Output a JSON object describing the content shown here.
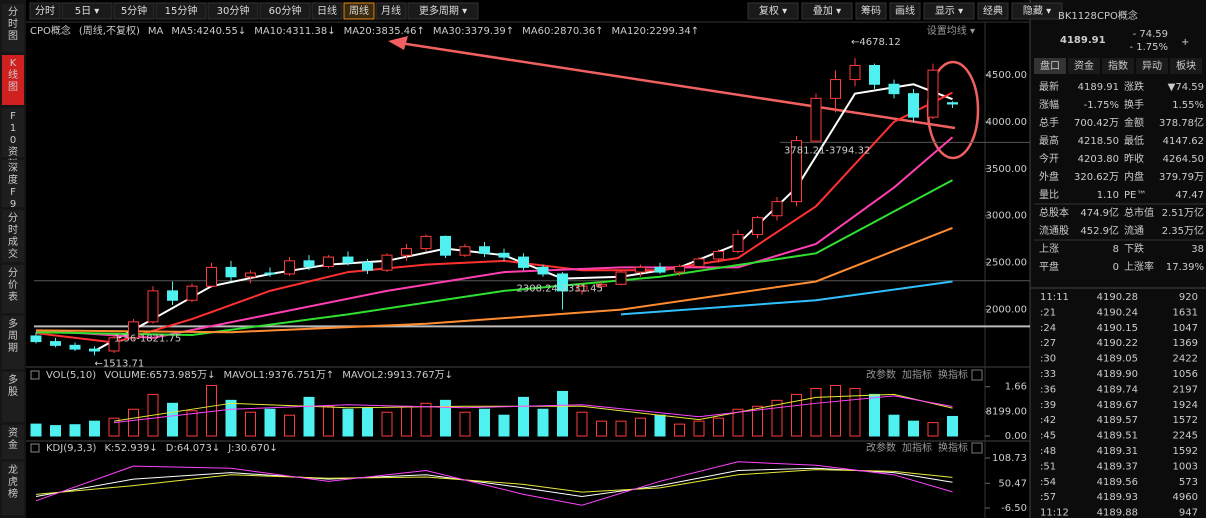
{
  "toolbar": {
    "left": [
      "分时",
      "5日 ▾",
      "5分钟",
      "15分钟",
      "30分钟",
      "60分钟",
      "日线",
      "周线",
      "月线",
      "更多周期 ▾"
    ],
    "active": 7,
    "right": [
      "复权 ▾",
      "叠加 ▾",
      "筹码",
      "画线",
      "显示 ▾",
      "经典",
      "隐藏 ▾"
    ]
  },
  "side_tabs": [
    "分时图",
    "K线图",
    "F10资料",
    "深度F9",
    "分时成交",
    "分价表",
    "多周期",
    "多股",
    "资金",
    "龙虎榜"
  ],
  "side_active": 1,
  "legend": {
    "name": "CPO概念",
    "mode": "(周线,不复权)",
    "ma": "MA",
    "setting": "设置均线 ▾"
  },
  "vol_legend": {
    "items": [
      {
        "text": "VOL(5,10)",
        "color": "#cccccc"
      },
      {
        "text": "VOLUME:6573.985万↓",
        "color": "#ffffff"
      },
      {
        "text": "MAVOL1:9376.751万↑",
        "color": "#e8e83a"
      },
      {
        "text": "MAVOL2:9913.767万↓",
        "color": "#ff44ff"
      }
    ],
    "buttons": [
      "改参数",
      "加指标",
      "换指标"
    ]
  },
  "kdj_legend": {
    "items": [
      {
        "text": "KDJ(9,3,3)",
        "color": "#cccccc"
      },
      {
        "text": "K:52.939↓",
        "color": "#ffffff"
      },
      {
        "text": "D:64.073↓",
        "color": "#e8e83a"
      },
      {
        "text": "J:30.670↓",
        "color": "#ff44ff"
      }
    ],
    "buttons": [
      "改参数",
      "加指标",
      "换指标"
    ]
  },
  "chart_data": {
    "type": "candlestick",
    "open": [
      1720,
      1660,
      1620,
      1580,
      1560,
      1700,
      1870,
      2200,
      2100,
      2250,
      2450,
      2350,
      2390,
      2380,
      2520,
      2460,
      2560,
      2500,
      2420,
      2580,
      2650,
      2780,
      2580,
      2670,
      2600,
      2560,
      2450,
      2380,
      2200,
      2250,
      2270,
      2400,
      2450,
      2400,
      2460,
      2540,
      2620,
      2800,
      3000,
      3150,
      3794.32,
      4250,
      4450,
      4600,
      4400,
      4300,
      4050,
      4203.8
    ],
    "high": [
      1760,
      1700,
      1650,
      1610,
      1720,
      1900,
      2250,
      2300,
      2280,
      2500,
      2520,
      2420,
      2450,
      2560,
      2580,
      2580,
      2620,
      2540,
      2600,
      2700,
      2800,
      2790,
      2700,
      2720,
      2650,
      2600,
      2480,
      2400,
      2280,
      2300,
      2420,
      2480,
      2500,
      2480,
      2560,
      2640,
      2850,
      3000,
      3200,
      3850,
      4300,
      4550,
      4678.12,
      4620,
      4450,
      4350,
      4620,
      4218.5
    ],
    "low": [
      1640,
      1600,
      1560,
      1513.71,
      1540,
      1680,
      1850,
      2050,
      2080,
      2230,
      2300,
      2280,
      2350,
      2360,
      2420,
      2440,
      2470,
      2380,
      2400,
      2520,
      2620,
      2550,
      2560,
      2560,
      2520,
      2420,
      2350,
      2000,
      2160,
      2200,
      2260,
      2350,
      2380,
      2360,
      2440,
      2500,
      2600,
      2760,
      2950,
      3100,
      3781.21,
      4100,
      4380,
      4350,
      4250,
      4000,
      4030,
      4147.62
    ],
    "close": [
      1660,
      1620,
      1580,
      1560,
      1700,
      1870,
      2200,
      2100,
      2250,
      2450,
      2350,
      2390,
      2380,
      2520,
      2460,
      2560,
      2500,
      2420,
      2580,
      2650,
      2780,
      2580,
      2670,
      2600,
      2560,
      2450,
      2380,
      2200,
      2250,
      2270,
      2400,
      2450,
      2400,
      2460,
      2540,
      2620,
      2800,
      2980,
      3150,
      3800,
      4250,
      4450,
      4600,
      4400,
      4300,
      4050,
      4550,
      4189.91
    ],
    "volume": [
      4000,
      3500,
      3800,
      5000,
      6000,
      9000,
      14000,
      11000,
      8500,
      17000,
      12000,
      8000,
      9000,
      7000,
      13000,
      10000,
      9000,
      9500,
      8000,
      10000,
      11000,
      12000,
      8000,
      9000,
      7000,
      13000,
      9000,
      15000,
      8000,
      5000,
      5000,
      6000,
      7000,
      4000,
      5000,
      6000,
      9000,
      10000,
      12000,
      14000,
      16000,
      17000,
      16000,
      14000,
      7000,
      5000,
      4500,
      6573.985
    ],
    "ylim": [
      1400,
      4850
    ],
    "yticks": [
      {
        "value": 2000,
        "label": "2000.00"
      },
      {
        "value": 2500,
        "label": "2500.00"
      },
      {
        "value": 3000,
        "label": "3000.00"
      },
      {
        "value": 3500,
        "label": "3500.00"
      },
      {
        "value": 4000,
        "label": "4000.00"
      },
      {
        "value": 4500,
        "label": "4500.00"
      }
    ],
    "vol_ylim": [
      0,
      17500
    ],
    "vol_yticks": [
      {
        "value": 0,
        "label": "0.00"
      },
      {
        "value": 8199,
        "label": "8199.00"
      },
      {
        "value": 16600,
        "label": "1.66"
      }
    ],
    "kdj_ylim": [
      -6.5,
      108.73
    ],
    "kdj_yticks": [
      {
        "value": -6.5,
        "label": "-6.50"
      },
      50.47,
      108.73
    ],
    "up_color": "#ff3b3b",
    "down_color": "#4ff0f0",
    "series": [
      {
        "name": "MA5:4240.55↓",
        "color": "#ffffff",
        "x": [
          3,
          6,
          9,
          12,
          15,
          18,
          21,
          24,
          27,
          30,
          33,
          36,
          39,
          42,
          45,
          47
        ],
        "values": [
          1560,
          1900,
          2250,
          2380,
          2480,
          2520,
          2650,
          2580,
          2330,
          2350,
          2450,
          2700,
          3300,
          4300,
          4400,
          4240.55
        ]
      },
      {
        "name": "MA10:4311.38↓",
        "color": "#ff3030",
        "x": [
          0,
          4,
          8,
          12,
          16,
          20,
          24,
          28,
          32,
          36,
          40,
          44,
          47
        ],
        "values": [
          1750,
          1650,
          1900,
          2200,
          2400,
          2480,
          2520,
          2420,
          2420,
          2550,
          3100,
          4000,
          4311.38
        ]
      },
      {
        "name": "MA20:3835.46↑",
        "color": "#ff3fb0",
        "x": [
          0,
          6,
          12,
          18,
          24,
          30,
          36,
          40,
          44,
          47
        ],
        "values": [
          1780,
          1700,
          1950,
          2200,
          2400,
          2450,
          2450,
          2700,
          3300,
          3835.46
        ]
      },
      {
        "name": "MA30:3379.39↑",
        "color": "#30e030",
        "x": [
          0,
          8,
          16,
          24,
          32,
          40,
          47
        ],
        "values": [
          1760,
          1730,
          1950,
          2200,
          2350,
          2600,
          3379.39
        ]
      },
      {
        "name": "MA60:2870.36↑",
        "color": "#ff8c30",
        "x": [
          0,
          10,
          20,
          30,
          40,
          47
        ],
        "values": [
          1780,
          1760,
          1850,
          2000,
          2300,
          2870.36
        ]
      },
      {
        "name": "MA120:2299.34↑",
        "color": "#30c0ff",
        "x": [
          30,
          40,
          47
        ],
        "values": [
          1950,
          2100,
          2299.34
        ]
      }
    ],
    "vol_series": [
      {
        "color": "#e8e83a",
        "x": [
          4,
          10,
          16,
          22,
          28,
          34,
          40,
          44,
          47
        ],
        "values": [
          5000,
          11000,
          9500,
          10000,
          10000,
          5500,
          13000,
          14000,
          9376.751
        ]
      },
      {
        "color": "#ff44ff",
        "x": [
          4,
          10,
          16,
          22,
          28,
          34,
          40,
          44,
          47
        ],
        "values": [
          4500,
          9000,
          10500,
          9500,
          10500,
          6500,
          11000,
          13500,
          9913.767
        ]
      }
    ],
    "kdj_series": [
      {
        "color": "#ffffff",
        "x": [
          0,
          5,
          10,
          15,
          20,
          25,
          28,
          32,
          36,
          40,
          44,
          47
        ],
        "values": [
          20,
          60,
          75,
          60,
          70,
          40,
          20,
          45,
          80,
          85,
          75,
          52.939
        ]
      },
      {
        "color": "#e8e83a",
        "x": [
          0,
          5,
          10,
          15,
          20,
          25,
          28,
          32,
          36,
          40,
          44,
          47
        ],
        "values": [
          25,
          45,
          70,
          62,
          65,
          48,
          30,
          40,
          70,
          82,
          78,
          64.073
        ]
      },
      {
        "color": "#ff44ff",
        "x": [
          0,
          5,
          10,
          15,
          20,
          25,
          28,
          32,
          36,
          40,
          44,
          47
        ],
        "values": [
          10,
          90,
          85,
          55,
          80,
          25,
          0,
          55,
          100,
          92,
          70,
          30.67
        ]
      }
    ],
    "annotations": [
      {
        "text": "←4678.12",
        "index": 42,
        "value": 4678.12
      },
      {
        "text": "3781.21-3794.32",
        "index": 40,
        "value": 3781.21
      },
      {
        "text": "2308.24-2331.45",
        "index": 27,
        "value": 2308.24
      },
      {
        "text": "1.56-1821.75",
        "index": 4,
        "value": 1821.75
      },
      {
        "text": "←1513.71",
        "index": 3,
        "value": 1513.71
      }
    ],
    "levels": [
      3781.21,
      2308.24,
      1821.75
    ]
  },
  "panel": {
    "code": "BK1128",
    "name": "CPO概念",
    "price": "4189.91",
    "change": "- 74.59",
    "pct": "- 1.75%",
    "plus": "+",
    "tabs": [
      "盘口",
      "资金",
      "指数",
      "异动",
      "板块"
    ],
    "rows": [
      [
        {
          "label": "最新",
          "value": "4189.91",
          "color": "#3ee03e"
        },
        {
          "label": "涨跌",
          "value": "▼74.59",
          "color": "#3ee03e"
        }
      ],
      [
        {
          "label": "涨幅",
          "value": "-1.75%",
          "color": "#3ee03e"
        },
        {
          "label": "换手",
          "value": "1.55%",
          "color": "#dddddd"
        }
      ],
      [
        {
          "label": "总手",
          "value": "700.42万",
          "color": "#dddddd"
        },
        {
          "label": "金额",
          "value": "378.78亿",
          "color": "#5ab0ff"
        }
      ],
      [
        {
          "label": "最高",
          "value": "4218.50",
          "color": "#3ee03e"
        },
        {
          "label": "最低",
          "value": "4147.62",
          "color": "#3ee03e"
        }
      ],
      [
        {
          "label": "今开",
          "value": "4203.80",
          "color": "#3ee03e"
        },
        {
          "label": "昨收",
          "value": "4264.50",
          "color": "#dddddd"
        }
      ],
      [
        {
          "label": "外盘",
          "value": "320.62万",
          "color": "#ff4040"
        },
        {
          "label": "内盘",
          "value": "379.79万",
          "color": "#3ee03e"
        }
      ],
      [
        {
          "label": "量比",
          "value": "1.10",
          "color": "#ff4040"
        },
        {
          "label": "PE™",
          "value": "47.47",
          "color": "#dddddd"
        }
      ],
      [
        {
          "label": "总股本",
          "value": "474.9亿",
          "color": "#dddddd"
        },
        {
          "label": "总市值",
          "value": "2.51万亿",
          "color": "#dddddd"
        }
      ],
      [
        {
          "label": "流通股",
          "value": "452.9亿",
          "color": "#dddddd"
        },
        {
          "label": "流通",
          "value": "2.35万亿",
          "color": "#dddddd"
        }
      ],
      [
        {
          "label": "上涨",
          "value": "8",
          "color": "#ff4040"
        },
        {
          "label": "下跌",
          "value": "38",
          "color": "#3ee03e"
        }
      ],
      [
        {
          "label": "平盘",
          "value": "0",
          "color": "#dddddd"
        },
        {
          "label": "上涨率",
          "value": "17.39%",
          "color": "#dddddd"
        }
      ]
    ],
    "trades": [
      {
        "time": "11:11",
        "price": "4190.28",
        "vol": "920",
        "color": "#ff4040"
      },
      {
        "time": ":21",
        "price": "4190.24",
        "vol": "1631",
        "color": "#3ee03e"
      },
      {
        "time": ":24",
        "price": "4190.15",
        "vol": "1047",
        "color": "#3ee03e"
      },
      {
        "time": ":27",
        "price": "4190.22",
        "vol": "1369",
        "color": "#ff4040"
      },
      {
        "time": ":30",
        "price": "4189.05",
        "vol": "2422",
        "color": "#3ee03e"
      },
      {
        "time": ":33",
        "price": "4189.90",
        "vol": "1056",
        "color": "#3ee03e"
      },
      {
        "time": ":36",
        "price": "4189.74",
        "vol": "2197",
        "color": "#3ee03e"
      },
      {
        "time": ":39",
        "price": "4189.67",
        "vol": "1924",
        "color": "#3ee03e"
      },
      {
        "time": ":42",
        "price": "4189.57",
        "vol": "1572",
        "color": "#3ee03e"
      },
      {
        "time": ":45",
        "price": "4189.51",
        "vol": "2245",
        "color": "#3ee03e"
      },
      {
        "time": ":48",
        "price": "4189.31",
        "vol": "1592",
        "color": "#3ee03e"
      },
      {
        "time": ":51",
        "price": "4189.37",
        "vol": "1003",
        "color": "#ff4040"
      },
      {
        "time": ":54",
        "price": "4189.56",
        "vol": "573",
        "color": "#ff4040"
      },
      {
        "time": ":57",
        "price": "4189.93",
        "vol": "4960",
        "color": "#ff4040"
      },
      {
        "time": "11:12",
        "price": "4189.88",
        "vol": "947",
        "color": "#3ee03e"
      }
    ]
  }
}
